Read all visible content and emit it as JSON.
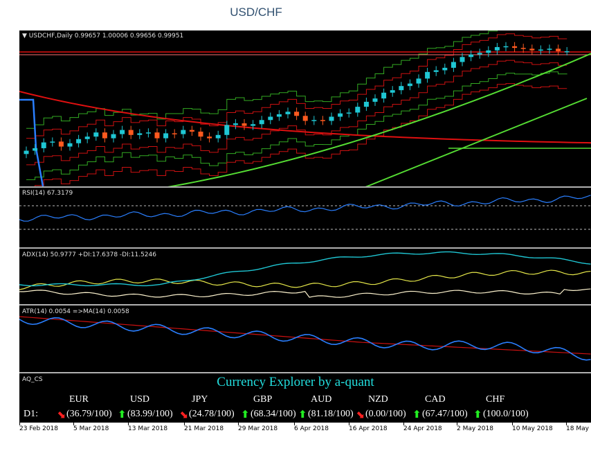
{
  "title": "USD/CHF",
  "main_pane": {
    "label": "USDCHF,Daily  0.99657 1.00006 0.99656 0.99951",
    "menu_glyph": "▼"
  },
  "rsi_pane": {
    "label": "RSI(14) 67.3179"
  },
  "adx_pane": {
    "label": "ADX(14) 50.9777 +DI:17.6378 -DI:11.5246"
  },
  "atr_pane": {
    "label": "ATR(14) 0.0054  =>MA(14) 0.0058"
  },
  "cs_pane": {
    "label": "AQ_CS",
    "heading": "Currency Explorer by a-quant",
    "row_label": "D1:",
    "currencies": [
      {
        "code": "EUR",
        "value": "(36.79/100)",
        "arrow": "down"
      },
      {
        "code": "USD",
        "value": "(83.99/100)",
        "arrow": "up"
      },
      {
        "code": "JPY",
        "value": "(24.78/100)",
        "arrow": "down"
      },
      {
        "code": "GBP",
        "value": "(68.34/100)",
        "arrow": "up"
      },
      {
        "code": "AUD",
        "value": "(81.18/100)",
        "arrow": "up"
      },
      {
        "code": "NZD",
        "value": "(0.00/100)",
        "arrow": "down"
      },
      {
        "code": "CAD",
        "value": "(67.47/100)",
        "arrow": "up"
      },
      {
        "code": "CHF",
        "value": "(100.0/100)",
        "arrow": "up"
      }
    ]
  },
  "x_axis": [
    "23 Feb 2018",
    "5 Mar 2018",
    "13 Mar 2018",
    "21 Mar 2018",
    "29 Mar 2018",
    "6 Apr 2018",
    "16 Apr 2018",
    "24 Apr 2018",
    "2 May 2018",
    "10 May 2018",
    "18 May"
  ],
  "colors": {
    "background": "#000000",
    "bull": "#1fc7d4",
    "bear": "#ff5a1f",
    "ma_red": "#e01010",
    "ma_green": "#55dd33",
    "band_green": "#33aa22",
    "band_red": "#cc1111",
    "rsi": "#2a7fff",
    "adx": "#1fc7d4",
    "plus_di": "#e6e84a",
    "minus_di": "#fff5d0",
    "atr": "#2a7fff",
    "atr_ma": "#cc1111",
    "arrow_up": "#22ee22",
    "arrow_down": "#ff2020",
    "heading": "#22dddd"
  },
  "chart_data": {
    "type": "candlestick",
    "symbol": "USDCHF",
    "timeframe": "Daily",
    "ohlc_last": {
      "open": 0.99657,
      "high": 1.00006,
      "low": 0.99656,
      "close": 0.99951
    },
    "closes": [
      0.9395,
      0.941,
      0.9445,
      0.945,
      0.942,
      0.944,
      0.9465,
      0.948,
      0.9505,
      0.947,
      0.9495,
      0.952,
      0.949,
      0.95,
      0.9505,
      0.947,
      0.95,
      0.9495,
      0.952,
      0.951,
      0.948,
      0.947,
      0.949,
      0.955,
      0.956,
      0.9545,
      0.9555,
      0.958,
      0.96,
      0.9615,
      0.963,
      0.9605,
      0.9575,
      0.958,
      0.9575,
      0.96,
      0.962,
      0.9625,
      0.966,
      0.969,
      0.971,
      0.9745,
      0.976,
      0.9785,
      0.98,
      0.983,
      0.987,
      0.988,
      0.9895,
      0.993,
      0.996,
      0.9975,
      0.9985,
      1.0,
      1.002,
      1.0025,
      1.0015,
      1.001,
      1.0,
      1.0005,
      1.001,
      0.9995,
      0.9995
    ]
  }
}
